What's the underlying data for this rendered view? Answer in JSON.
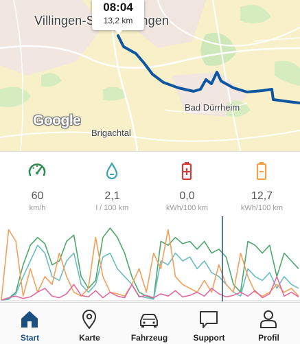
{
  "map": {
    "city_label": "Villingen-Schwenningen",
    "town_labels": [
      "Bad Dürrheim",
      "Brigachtal"
    ],
    "provider_logo": "Google",
    "route_color": "#0f56a1",
    "callout": {
      "time": "08:04",
      "distance": "13,2 km"
    }
  },
  "stats": [
    {
      "icon": "speedometer-icon",
      "value": "60",
      "unit": "km/h",
      "color": "#2f8a54"
    },
    {
      "icon": "water-drop-icon",
      "value": "2,1",
      "unit": "l / 100 km",
      "color": "#3aa3b5"
    },
    {
      "icon": "battery-charging-icon",
      "value": "0,0",
      "unit": "kWh/100 km",
      "color": "#d63a3a"
    },
    {
      "icon": "battery-icon",
      "value": "12,7",
      "unit": "kWh/100 km",
      "color": "#f3a24a"
    }
  ],
  "chart_data": {
    "type": "line",
    "cursor_marker": true,
    "series": [
      {
        "color": "#4ca86c",
        "values": [
          0,
          2,
          10,
          45,
          70,
          80,
          72,
          45,
          50,
          75,
          83,
          30,
          15,
          25,
          80,
          92,
          80,
          60,
          30,
          10,
          5,
          2,
          75,
          70,
          80,
          72,
          75,
          65,
          75,
          60,
          65,
          55,
          20,
          10,
          75,
          70,
          60,
          70,
          30,
          60,
          50,
          40
        ]
      },
      {
        "color": "#6bbcc4",
        "values": [
          0,
          1,
          8,
          30,
          50,
          70,
          60,
          30,
          25,
          50,
          60,
          20,
          10,
          20,
          55,
          60,
          40,
          30,
          20,
          5,
          3,
          1,
          50,
          45,
          60,
          50,
          55,
          40,
          50,
          35,
          30,
          20,
          10,
          5,
          40,
          30,
          25,
          35,
          15,
          30,
          20,
          15
        ]
      },
      {
        "color": "#f2a05a",
        "values": [
          0,
          90,
          75,
          5,
          40,
          10,
          30,
          20,
          60,
          30,
          10,
          5,
          15,
          80,
          30,
          10,
          8,
          5,
          20,
          40,
          10,
          60,
          40,
          90,
          30,
          20,
          15,
          10,
          25,
          10,
          45,
          20,
          10,
          60,
          30,
          10,
          5,
          10,
          20,
          10,
          15,
          5
        ]
      },
      {
        "color": "#e06aa0",
        "values": [
          0,
          3,
          5,
          2,
          4,
          10,
          15,
          5,
          3,
          8,
          20,
          6,
          4,
          12,
          3,
          10,
          5,
          3,
          20,
          4,
          6,
          3,
          8,
          5,
          12,
          4,
          6,
          10,
          5,
          15,
          8,
          4,
          6,
          10,
          5,
          12,
          3,
          8,
          30,
          5,
          10,
          4
        ]
      }
    ]
  },
  "tabs": [
    {
      "label": "Start",
      "icon": "home-icon",
      "active": true
    },
    {
      "label": "Karte",
      "icon": "map-pin-icon",
      "active": false
    },
    {
      "label": "Fahrzeug",
      "icon": "car-icon",
      "active": false
    },
    {
      "label": "Support",
      "icon": "chat-bubble-icon",
      "active": false
    },
    {
      "label": "Profil",
      "icon": "person-icon",
      "active": false
    }
  ]
}
